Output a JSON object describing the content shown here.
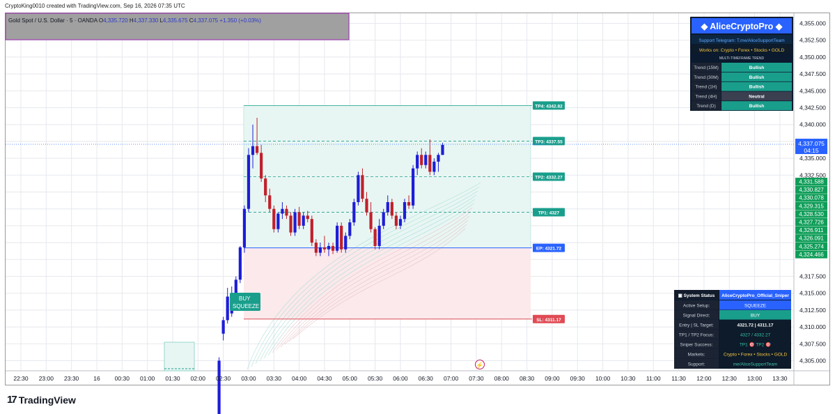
{
  "header": {
    "created_by": "CryptoKing0010 created with TradingView.com, Sep 16, 2026 07:35 UTC"
  },
  "symbol_bar": {
    "symbol": "Gold Spot / U.S. Dollar · 5 · OANDA",
    "open_label": "O",
    "open": "4,335.720",
    "high_label": "H",
    "high": "4,337.330",
    "low_label": "L",
    "low": "4,335.675",
    "close_label": "C",
    "close": "4,337.075",
    "change": "+1.350 (+0.03%)"
  },
  "footer": {
    "brand": "TradingView"
  },
  "colors": {
    "bull": "#1d1dd6",
    "bear": "#c0202c",
    "teal": "#1a9e8c",
    "tp_zone": "#e8f6f3",
    "sl_zone": "#fbe9eb",
    "ep_blue": "#2962ff",
    "sl_red": "#e04b55"
  },
  "chart_data": {
    "type": "candlestick",
    "symbol": "Gold Spot / U.S. Dollar",
    "timeframe": "5",
    "x_ticks": [
      "22:30",
      "23:00",
      "23:30",
      "16",
      "00:30",
      "01:00",
      "01:30",
      "02:00",
      "02:30",
      "03:00",
      "03:30",
      "04:00",
      "04:30",
      "05:00",
      "05:30",
      "06:00",
      "06:30",
      "07:00",
      "07:30",
      "08:00",
      "08:30",
      "09:00",
      "09:30",
      "10:00",
      "10:30",
      "11:00",
      "11:30",
      "12:00",
      "12:30",
      "13:00",
      "13:30"
    ],
    "y_ticks": [
      "4,305.000",
      "4,307.500",
      "4,310.000",
      "4,312.500",
      "4,315.000",
      "4,317.500",
      "4,332.500",
      "4,335.000",
      "4,340.000",
      "4,342.500",
      "4,345.000",
      "4,347.500",
      "4,350.000",
      "4,352.500",
      "4,355.000"
    ],
    "ylim": [
      4303.5,
      4356.5
    ],
    "current_price": "4,337.075",
    "countdown": "04:15",
    "price_labels": [
      "4,331.588",
      "4,330.827",
      "4,330.078",
      "4,329.315",
      "4,328.530",
      "4,327.726",
      "4,326.911",
      "4,326.091",
      "4,325.274",
      "4,324.466"
    ],
    "candles": [
      {
        "t": "02:25",
        "o": 4297.0,
        "h": 4305.5,
        "l": 4295.0,
        "c": 4305.0
      },
      {
        "t": "02:30",
        "o": 4309.0,
        "h": 4311.5,
        "l": 4308.0,
        "c": 4311.0
      },
      {
        "t": "02:35",
        "o": 4311.0,
        "h": 4315.8,
        "l": 4310.5,
        "c": 4314.5
      },
      {
        "t": "02:40",
        "o": 4312.0,
        "h": 4316.0,
        "l": 4311.5,
        "c": 4314.5
      },
      {
        "t": "02:45",
        "o": 4314.5,
        "h": 4317.5,
        "l": 4314.0,
        "c": 4317.0
      },
      {
        "t": "02:50",
        "o": 4317.0,
        "h": 4322.0,
        "l": 4316.5,
        "c": 4321.8
      },
      {
        "t": "02:55",
        "o": 4321.8,
        "h": 4328.0,
        "l": 4321.0,
        "c": 4327.5
      },
      {
        "t": "03:00",
        "o": 4327.5,
        "h": 4336.5,
        "l": 4327.0,
        "c": 4335.5
      },
      {
        "t": "03:05",
        "o": 4335.5,
        "h": 4340.0,
        "l": 4333.5,
        "c": 4336.8
      },
      {
        "t": "03:10",
        "o": 4336.8,
        "h": 4341.0,
        "l": 4335.5,
        "c": 4335.8
      },
      {
        "t": "03:15",
        "o": 4335.8,
        "h": 4337.0,
        "l": 4331.5,
        "c": 4332.0
      },
      {
        "t": "03:20",
        "o": 4332.0,
        "h": 4332.5,
        "l": 4328.5,
        "c": 4329.5
      },
      {
        "t": "03:25",
        "o": 4329.5,
        "h": 4330.5,
        "l": 4327.0,
        "c": 4327.5
      },
      {
        "t": "03:30",
        "o": 4327.5,
        "h": 4328.0,
        "l": 4324.0,
        "c": 4324.5
      },
      {
        "t": "03:35",
        "o": 4324.5,
        "h": 4327.0,
        "l": 4324.0,
        "c": 4326.8
      },
      {
        "t": "03:40",
        "o": 4326.8,
        "h": 4328.5,
        "l": 4326.0,
        "c": 4327.5
      },
      {
        "t": "03:45",
        "o": 4327.5,
        "h": 4328.0,
        "l": 4326.0,
        "c": 4326.5
      },
      {
        "t": "03:50",
        "o": 4326.5,
        "h": 4327.0,
        "l": 4323.5,
        "c": 4324.0
      },
      {
        "t": "03:55",
        "o": 4324.0,
        "h": 4327.5,
        "l": 4323.5,
        "c": 4327.0
      },
      {
        "t": "04:00",
        "o": 4327.0,
        "h": 4327.8,
        "l": 4324.5,
        "c": 4325.0
      },
      {
        "t": "04:05",
        "o": 4325.0,
        "h": 4327.0,
        "l": 4324.5,
        "c": 4326.5
      },
      {
        "t": "04:10",
        "o": 4326.5,
        "h": 4327.2,
        "l": 4325.5,
        "c": 4326.0
      },
      {
        "t": "04:15",
        "o": 4326.0,
        "h": 4326.5,
        "l": 4322.0,
        "c": 4322.5
      },
      {
        "t": "04:20",
        "o": 4322.5,
        "h": 4323.0,
        "l": 4320.5,
        "c": 4321.0
      },
      {
        "t": "04:25",
        "o": 4321.0,
        "h": 4322.5,
        "l": 4320.5,
        "c": 4321.8
      },
      {
        "t": "04:30",
        "o": 4321.8,
        "h": 4323.5,
        "l": 4321.0,
        "c": 4321.5
      },
      {
        "t": "04:35",
        "o": 4321.5,
        "h": 4322.5,
        "l": 4320.5,
        "c": 4322.0
      },
      {
        "t": "04:40",
        "o": 4322.0,
        "h": 4322.5,
        "l": 4320.8,
        "c": 4321.3
      },
      {
        "t": "04:45",
        "o": 4321.3,
        "h": 4325.5,
        "l": 4321.0,
        "c": 4325.0
      },
      {
        "t": "04:50",
        "o": 4325.0,
        "h": 4325.5,
        "l": 4321.0,
        "c": 4321.5
      },
      {
        "t": "04:55",
        "o": 4321.5,
        "h": 4324.0,
        "l": 4321.0,
        "c": 4323.5
      },
      {
        "t": "05:00",
        "o": 4323.5,
        "h": 4326.0,
        "l": 4323.0,
        "c": 4325.5
      },
      {
        "t": "05:05",
        "o": 4325.5,
        "h": 4329.0,
        "l": 4325.0,
        "c": 4328.5
      },
      {
        "t": "05:10",
        "o": 4328.5,
        "h": 4333.0,
        "l": 4328.0,
        "c": 4332.5
      },
      {
        "t": "05:15",
        "o": 4332.5,
        "h": 4333.5,
        "l": 4328.5,
        "c": 4329.0
      },
      {
        "t": "05:20",
        "o": 4329.0,
        "h": 4330.0,
        "l": 4326.5,
        "c": 4327.0
      },
      {
        "t": "05:25",
        "o": 4327.0,
        "h": 4328.5,
        "l": 4324.0,
        "c": 4324.5
      },
      {
        "t": "05:30",
        "o": 4324.5,
        "h": 4324.8,
        "l": 4321.5,
        "c": 4322.0
      },
      {
        "t": "05:35",
        "o": 4322.0,
        "h": 4326.0,
        "l": 4321.5,
        "c": 4325.0
      },
      {
        "t": "05:40",
        "o": 4325.0,
        "h": 4327.5,
        "l": 4324.5,
        "c": 4327.0
      },
      {
        "t": "05:45",
        "o": 4327.0,
        "h": 4329.5,
        "l": 4326.5,
        "c": 4328.5
      },
      {
        "t": "05:50",
        "o": 4328.5,
        "h": 4329.0,
        "l": 4326.0,
        "c": 4326.5
      },
      {
        "t": "05:55",
        "o": 4326.5,
        "h": 4327.0,
        "l": 4324.5,
        "c": 4325.0
      },
      {
        "t": "06:00",
        "o": 4325.0,
        "h": 4326.5,
        "l": 4324.5,
        "c": 4326.0
      },
      {
        "t": "06:05",
        "o": 4326.0,
        "h": 4329.0,
        "l": 4325.5,
        "c": 4328.5
      },
      {
        "t": "06:10",
        "o": 4328.5,
        "h": 4329.5,
        "l": 4327.5,
        "c": 4328.0
      },
      {
        "t": "06:15",
        "o": 4328.0,
        "h": 4334.0,
        "l": 4327.5,
        "c": 4333.5
      },
      {
        "t": "06:20",
        "o": 4333.5,
        "h": 4336.0,
        "l": 4332.5,
        "c": 4335.5
      },
      {
        "t": "06:25",
        "o": 4335.5,
        "h": 4336.5,
        "l": 4333.5,
        "c": 4334.0
      },
      {
        "t": "06:30",
        "o": 4334.0,
        "h": 4336.0,
        "l": 4333.5,
        "c": 4335.5
      },
      {
        "t": "06:35",
        "o": 4335.5,
        "h": 4337.8,
        "l": 4332.5,
        "c": 4333.0
      },
      {
        "t": "06:40",
        "o": 4333.0,
        "h": 4335.0,
        "l": 4332.5,
        "c": 4334.5
      },
      {
        "t": "06:45",
        "o": 4334.5,
        "h": 4335.8,
        "l": 4333.0,
        "c": 4335.5
      },
      {
        "t": "06:50",
        "o": 4335.5,
        "h": 4337.3,
        "l": 4335.5,
        "c": 4337.0
      }
    ],
    "levels": [
      {
        "name": "TP4",
        "label": "TP4: 4342.82",
        "price": 4342.82
      },
      {
        "name": "TP3",
        "label": "TP3: 4337.55",
        "price": 4337.55
      },
      {
        "name": "TP2",
        "label": "TP2: 4332.27",
        "price": 4332.27
      },
      {
        "name": "TP1",
        "label": "TP1: 4327",
        "price": 4327.0
      },
      {
        "name": "EP",
        "label": "EP: 4321.72",
        "price": 4321.72
      },
      {
        "name": "SL",
        "label": "SL: 4311.17",
        "price": 4311.17
      }
    ],
    "signal_label": [
      "BUY",
      "SQUEEZE"
    ]
  },
  "panel_top": {
    "title": "AliceCryptoPro",
    "support": "Support Telegram: T.me/AliceSupportTeam",
    "works_on": "Works on: Crypto • Forex • Stocks • GOLD",
    "mtf_title": "MULTI-TIMEFRAME TREND",
    "rows": [
      {
        "tf": "Trend (15M)",
        "value": "Bullish",
        "state": "bull"
      },
      {
        "tf": "Trend (30M)",
        "value": "Bullish",
        "state": "bull"
      },
      {
        "tf": "Trend (1H)",
        "value": "Bullish",
        "state": "bull"
      },
      {
        "tf": "Trend (4H)",
        "value": "Neutral",
        "state": "neutral"
      },
      {
        "tf": "Trend (D)",
        "value": "Bullish",
        "state": "bull"
      }
    ]
  },
  "panel_status": {
    "head_left": "System Status",
    "head_right": "AliceCryptoPro_Official_Sniper",
    "rows": [
      {
        "label": "Active Setup:",
        "value": "SQUEEZE",
        "style": "blue"
      },
      {
        "label": "Signal Direct:",
        "value": "BUY",
        "style": "teal"
      },
      {
        "label": "Entry | SL Target:",
        "value": "4321.72 | 4311.17",
        "style": "dark"
      },
      {
        "label": "TP1 / TP2 Focus:",
        "value": "4327 / 4332.27",
        "style": "dim"
      },
      {
        "label": "Sniper Success:",
        "value": "TP1 🎯 TP2 🎯",
        "style": "dim"
      },
      {
        "label": "Markets:",
        "value": "Crypto • Forex • Stocks • GOLD",
        "style": "gold"
      },
      {
        "label": "Support:",
        "value": "me/AliceSupportTeam",
        "style": "dim"
      }
    ]
  }
}
